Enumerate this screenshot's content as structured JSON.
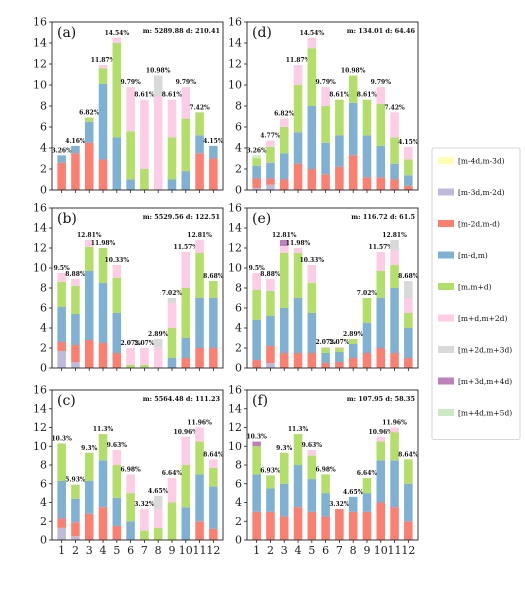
{
  "legend": {
    "entries": [
      {
        "label": "[m-4d,m-3d)",
        "color": "#ffffb3"
      },
      {
        "label": "[m-3d,m-2d)",
        "color": "#bebada"
      },
      {
        "label": "[m-2d,m-d)",
        "color": "#fb8072"
      },
      {
        "label": "[m-d,m)",
        "color": "#80b1d3"
      },
      {
        "label": "[m,m+d)",
        "color": "#b3de69"
      },
      {
        "label": "[m+d,m+2d)",
        "color": "#fccde5"
      },
      {
        "label": "[m+2d,m+3d)",
        "color": "#d9d9d9"
      },
      {
        "label": "[m+3d,m+4d)",
        "color": "#bc80bd"
      },
      {
        "label": "[m+4d,m+5d)",
        "color": "#ccebc5"
      }
    ]
  },
  "chart_data": [
    {
      "type": "bar",
      "stacked": true,
      "panel": "(a)",
      "stats": "m: 5289.88   d: 210.41",
      "categories": [
        "1",
        "2",
        "3",
        "4",
        "5",
        "6",
        "7",
        "8",
        "9",
        "10",
        "11",
        "12"
      ],
      "ylim": [
        0,
        16
      ],
      "yticks": [
        "0",
        "2",
        "4",
        "6",
        "8",
        "10",
        "12",
        "14",
        "16"
      ],
      "labels": [
        "3.26%",
        "4.16%",
        "6.82%",
        "11.87%",
        "14.54%",
        "9.79%",
        "8.61%",
        "10.98%",
        "8.61%",
        "9.79%",
        "7.42%",
        "4.15%"
      ],
      "segments": [
        [
          0,
          0,
          2.6,
          0.7,
          0,
          0,
          0,
          0,
          0
        ],
        [
          0,
          0,
          3.5,
          0.7,
          0,
          0,
          0,
          0,
          0
        ],
        [
          0,
          0,
          4.5,
          2.0,
          0.4,
          0,
          0,
          0,
          0
        ],
        [
          0,
          0,
          2.9,
          7.2,
          1.5,
          0.3,
          0,
          0,
          0
        ],
        [
          0,
          0,
          0,
          5.0,
          9.0,
          0.5,
          0,
          0,
          0
        ],
        [
          0,
          0,
          0,
          1.0,
          4.6,
          4.2,
          0,
          0,
          0
        ],
        [
          0,
          0,
          0,
          0,
          2.0,
          6.6,
          0,
          0,
          0
        ],
        [
          0,
          0,
          0,
          0,
          0,
          9.0,
          1.9,
          0,
          0
        ],
        [
          0,
          0,
          0,
          1.0,
          4.0,
          3.6,
          0,
          0,
          0
        ],
        [
          0,
          0,
          0,
          1.8,
          5.0,
          3.0,
          0,
          0,
          0
        ],
        [
          0,
          0,
          3.5,
          1.7,
          2.2,
          0,
          0,
          0,
          0
        ],
        [
          0,
          0,
          3.0,
          1.2,
          0,
          0,
          0,
          0,
          0
        ]
      ]
    },
    {
      "type": "bar",
      "stacked": true,
      "panel": "(d)",
      "stats": "m: 134.01   d: 64.46",
      "categories": [
        "1",
        "2",
        "3",
        "4",
        "5",
        "6",
        "7",
        "8",
        "9",
        "10",
        "11",
        "12"
      ],
      "ylim": [
        0,
        16
      ],
      "yticks": [
        "0",
        "2",
        "4",
        "6",
        "8",
        "10",
        "12",
        "14",
        "16"
      ],
      "labels": [
        "3.26%",
        "4.77%",
        "6.82%",
        "11.87%",
        "14.54%",
        "9.79%",
        "8.61%",
        "10.98%",
        "8.61%",
        "9.79%",
        "7.42%",
        "4.15%"
      ],
      "segments": [
        [
          0,
          0.2,
          0.9,
          1.2,
          0.7,
          0,
          0,
          0,
          0.3
        ],
        [
          0,
          0.5,
          0.6,
          1.5,
          1.5,
          0.6,
          0,
          0,
          0
        ],
        [
          0,
          0,
          1.0,
          2.5,
          2.5,
          0.8,
          0,
          0,
          0
        ],
        [
          0,
          0,
          2.5,
          3.0,
          4.5,
          1.9,
          0,
          0,
          0
        ],
        [
          0,
          0,
          2.0,
          6.0,
          5.5,
          1.0,
          0,
          0,
          0
        ],
        [
          0,
          0,
          1.5,
          3.0,
          3.5,
          1.8,
          0,
          0,
          0
        ],
        [
          0,
          0,
          2.2,
          3.0,
          3.4,
          0,
          0,
          0,
          0
        ],
        [
          0,
          0,
          3.3,
          5.0,
          2.6,
          0,
          0,
          0,
          0
        ],
        [
          0,
          0,
          1.2,
          4.0,
          3.4,
          0,
          0,
          0,
          0
        ],
        [
          0,
          0,
          1.2,
          3.0,
          4.0,
          1.6,
          0,
          0,
          0
        ],
        [
          0,
          0,
          1.0,
          1.5,
          2.5,
          2.4,
          0,
          0,
          0
        ],
        [
          0,
          0,
          0.4,
          1.0,
          1.5,
          1.2,
          0,
          0,
          0
        ]
      ]
    },
    {
      "type": "bar",
      "stacked": true,
      "panel": "(b)",
      "stats": "m: 5529.56   d: 122.51",
      "categories": [
        "1",
        "2",
        "3",
        "4",
        "5",
        "6",
        "7",
        "8",
        "9",
        "10",
        "11",
        "12"
      ],
      "ylim": [
        0,
        16
      ],
      "yticks": [
        "0",
        "2",
        "4",
        "6",
        "8",
        "10",
        "12",
        "14",
        "16"
      ],
      "labels": [
        "9.5%",
        "8.88%",
        "12.81%",
        "11.98%",
        "10.33%",
        "2.07%",
        "2.07%",
        "2.89%",
        "7.02%",
        "11.57%",
        "12.81%",
        "8.68%"
      ],
      "segments": [
        [
          0,
          1.7,
          0.9,
          3.5,
          2.5,
          0.9,
          0,
          0,
          0
        ],
        [
          0,
          0.6,
          1.7,
          3.1,
          2.8,
          0.7,
          0,
          0,
          0
        ],
        [
          0,
          0,
          2.8,
          6.9,
          2.4,
          0.7,
          0,
          0,
          0
        ],
        [
          0,
          0,
          2.5,
          6.0,
          3.5,
          0,
          0,
          0,
          0
        ],
        [
          0,
          0,
          1.5,
          4.0,
          3.5,
          1.3,
          0,
          0,
          0
        ],
        [
          0,
          0,
          0,
          0,
          0.3,
          1.7,
          0,
          0,
          0
        ],
        [
          0,
          0,
          0,
          0,
          0.3,
          1.7,
          0,
          0,
          0
        ],
        [
          0,
          0,
          0,
          0,
          0,
          2.0,
          0.9,
          0,
          0
        ],
        [
          0,
          0,
          0,
          1.0,
          3.0,
          2.5,
          0.5,
          0,
          0
        ],
        [
          0,
          0,
          1.0,
          2.0,
          5.0,
          3.6,
          0,
          0,
          0
        ],
        [
          0,
          0,
          2.0,
          5.0,
          4.5,
          1.3,
          0,
          0,
          0
        ],
        [
          0,
          0,
          2.0,
          5.0,
          1.7,
          0,
          0,
          0,
          0
        ]
      ]
    },
    {
      "type": "bar",
      "stacked": true,
      "panel": "(e)",
      "stats": "m: 116.72   d: 61.5",
      "categories": [
        "1",
        "2",
        "3",
        "4",
        "5",
        "6",
        "7",
        "8",
        "9",
        "10",
        "11",
        "12"
      ],
      "ylim": [
        0,
        16
      ],
      "yticks": [
        "0",
        "2",
        "4",
        "6",
        "8",
        "10",
        "12",
        "14",
        "16"
      ],
      "labels": [
        "9.5%",
        "8.88%",
        "12.81%",
        "11.98%",
        "10.33%",
        "2.07%",
        "2.07%",
        "2.89%",
        "7.02%",
        "11.57%",
        "12.81%",
        "8.68%"
      ],
      "segments": [
        [
          0,
          0,
          0.8,
          4.0,
          3.0,
          1.7,
          0,
          0,
          0
        ],
        [
          0,
          0.5,
          1.7,
          3.0,
          2.5,
          1.2,
          0,
          0,
          0
        ],
        [
          0,
          0,
          1.5,
          4.5,
          5.5,
          0.7,
          0,
          0.6,
          0
        ],
        [
          0,
          0,
          1.5,
          5.5,
          4.5,
          0.5,
          0,
          0,
          0
        ],
        [
          0,
          0,
          1.5,
          4.0,
          3.0,
          1.8,
          0,
          0,
          0
        ],
        [
          0,
          0,
          0.5,
          1.0,
          0.5,
          0.1,
          0,
          0,
          0
        ],
        [
          0,
          0,
          0.6,
          1.0,
          0.4,
          0.1,
          0,
          0,
          0
        ],
        [
          0,
          0,
          1.0,
          1.4,
          0.5,
          0,
          0,
          0,
          0
        ],
        [
          0,
          0,
          1.5,
          3.0,
          2.5,
          0,
          0,
          0,
          0
        ],
        [
          0,
          0,
          2.0,
          5.0,
          2.7,
          1.9,
          0,
          0,
          0
        ],
        [
          0,
          0,
          1.5,
          6.5,
          2.3,
          1.5,
          1.0,
          0,
          0
        ],
        [
          0,
          0,
          1.0,
          3.0,
          1.5,
          1.5,
          1.7,
          0,
          0
        ]
      ]
    },
    {
      "type": "bar",
      "stacked": true,
      "panel": "(c)",
      "stats": "m: 5564.48   d: 111.23",
      "categories": [
        "1",
        "2",
        "3",
        "4",
        "5",
        "6",
        "7",
        "8",
        "9",
        "10",
        "11",
        "12"
      ],
      "ylim": [
        0,
        16
      ],
      "yticks": [
        "0",
        "2",
        "4",
        "6",
        "8",
        "10",
        "12",
        "14",
        "16"
      ],
      "labels": [
        "10.3%",
        "5.93%",
        "9.3%",
        "11.3%",
        "9.63%",
        "6.98%",
        "3.32%",
        "4.65%",
        "6.64%",
        "10.96%",
        "11.96%",
        "8.64%"
      ],
      "segments": [
        [
          0,
          1.3,
          1.0,
          4.0,
          4.0,
          0,
          0,
          0,
          0
        ],
        [
          0,
          0.4,
          1.5,
          2.5,
          1.5,
          0,
          0,
          0,
          0
        ],
        [
          0,
          0,
          2.8,
          3.5,
          3.0,
          0,
          0,
          0,
          0
        ],
        [
          0,
          0,
          3.5,
          5.0,
          2.8,
          0,
          0,
          0,
          0
        ],
        [
          0,
          0,
          1.5,
          3.0,
          3.5,
          1.6,
          0,
          0,
          0
        ],
        [
          0,
          0,
          0,
          2.0,
          3.0,
          2.0,
          0,
          0,
          0
        ],
        [
          0,
          0,
          0,
          0,
          1.0,
          2.3,
          0,
          0,
          0
        ],
        [
          0,
          0,
          0,
          0,
          1.3,
          2.0,
          1.4,
          0,
          0
        ],
        [
          0,
          0,
          0,
          0,
          4.0,
          2.6,
          0,
          0,
          0
        ],
        [
          0,
          0,
          0,
          3.5,
          4.5,
          3.0,
          0,
          0,
          0
        ],
        [
          0,
          0,
          2.0,
          5.0,
          3.5,
          1.5,
          0,
          0,
          0
        ],
        [
          0,
          0,
          1.2,
          4.5,
          2.0,
          0.9,
          0,
          0,
          0
        ]
      ]
    },
    {
      "type": "bar",
      "stacked": true,
      "panel": "(f)",
      "stats": "m: 107.95   d: 58.35",
      "categories": [
        "1",
        "2",
        "3",
        "4",
        "5",
        "6",
        "7",
        "8",
        "9",
        "10",
        "11",
        "12"
      ],
      "ylim": [
        0,
        16
      ],
      "yticks": [
        "0",
        "2",
        "4",
        "6",
        "8",
        "10",
        "12",
        "14",
        "16"
      ],
      "labels": [
        "10.3%",
        "6.93%",
        "9.3%",
        "11.3%",
        "9.63%",
        "6.98%",
        "3.32%",
        "4.65%",
        "6.64%",
        "10.96%",
        "11.96%",
        "8.64%"
      ],
      "segments": [
        [
          0,
          0,
          3.0,
          4.0,
          3.0,
          0,
          0,
          0.5,
          0
        ],
        [
          0,
          0,
          3.0,
          2.5,
          1.4,
          0,
          0,
          0,
          0
        ],
        [
          0,
          0,
          2.5,
          3.5,
          3.3,
          0,
          0,
          0,
          0
        ],
        [
          0,
          0,
          3.5,
          4.5,
          3.3,
          0,
          0,
          0,
          0
        ],
        [
          0,
          0,
          3.0,
          3.5,
          2.5,
          0.6,
          0,
          0,
          0
        ],
        [
          0,
          0,
          2.5,
          2.5,
          2.0,
          0,
          0,
          0,
          0
        ],
        [
          0,
          0,
          3.3,
          0,
          0,
          0,
          0,
          0,
          0
        ],
        [
          0,
          0,
          3.0,
          1.6,
          0,
          0,
          0,
          0,
          0
        ],
        [
          0,
          0,
          3.0,
          2.0,
          1.6,
          0,
          0,
          0,
          0
        ],
        [
          0,
          0,
          4.0,
          4.5,
          2.0,
          0.5,
          0,
          0,
          0
        ],
        [
          0,
          0,
          3.5,
          5.0,
          3.0,
          0.5,
          0,
          0,
          0
        ],
        [
          0,
          0,
          2.0,
          4.0,
          2.6,
          0,
          0,
          0,
          0
        ]
      ]
    }
  ]
}
